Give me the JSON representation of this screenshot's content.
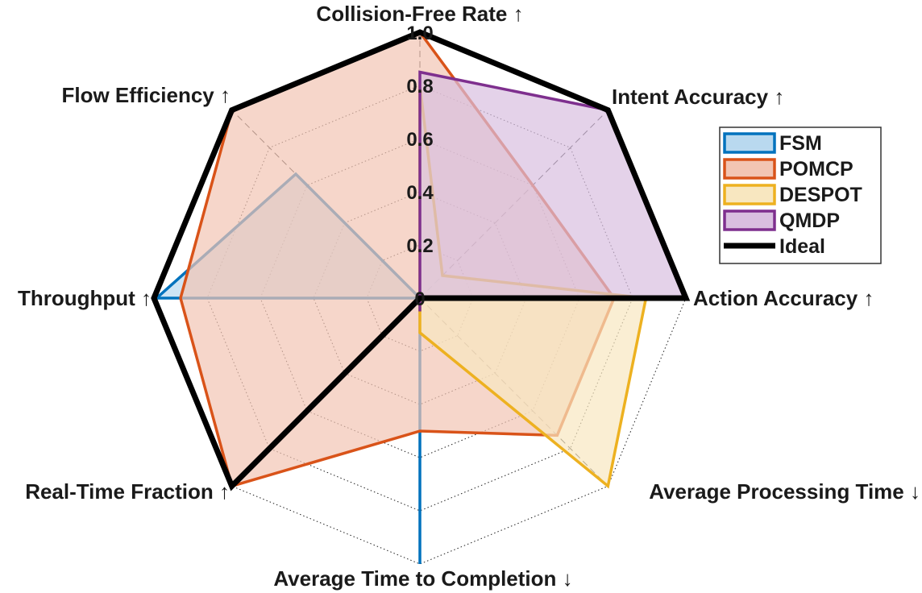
{
  "chart_data": {
    "type": "radar",
    "axes": [
      "Collision-Free Rate ↑",
      "Intent Accuracy ↑",
      "Action Accuracy ↑",
      "Average Processing Time ↓",
      "Average Time to Completion ↓",
      "Real-Time Fraction ↑",
      "Throughput ↑",
      "Flow Efficiency ↑"
    ],
    "rticks": [
      "0",
      "0.2",
      "0.4",
      "0.6",
      "0.8",
      "1.0"
    ],
    "rlim": [
      0,
      1
    ],
    "grid": true,
    "legend_position": "right",
    "series": [
      {
        "name": "FSM",
        "color": "#0072BD",
        "fill": "#b9d9ef",
        "values": [
          0.0,
          0.0,
          0.0,
          0.0,
          1.0,
          0.0,
          0.99,
          0.66
        ]
      },
      {
        "name": "POMCP",
        "color": "#D95319",
        "fill": "#f2c5b3",
        "values": [
          1.0,
          0.6,
          0.73,
          0.73,
          0.5,
          1.0,
          0.9,
          1.0
        ]
      },
      {
        "name": "DESPOT",
        "color": "#EDB120",
        "fill": "#f8e7c0",
        "values": [
          0.8,
          0.12,
          0.85,
          1.0,
          0.13,
          0.0,
          0.0,
          0.0
        ]
      },
      {
        "name": "QMDP",
        "color": "#7E2F8E",
        "fill": "#d9bfe0",
        "values": [
          0.85,
          1.0,
          1.0,
          0.0,
          0.05,
          0.0,
          0.0,
          0.0
        ]
      },
      {
        "name": "Ideal",
        "color": "#000000",
        "fill": "none",
        "values": [
          1.0,
          1.0,
          1.0,
          0.0,
          0.0,
          1.0,
          1.0,
          1.0
        ]
      }
    ]
  }
}
